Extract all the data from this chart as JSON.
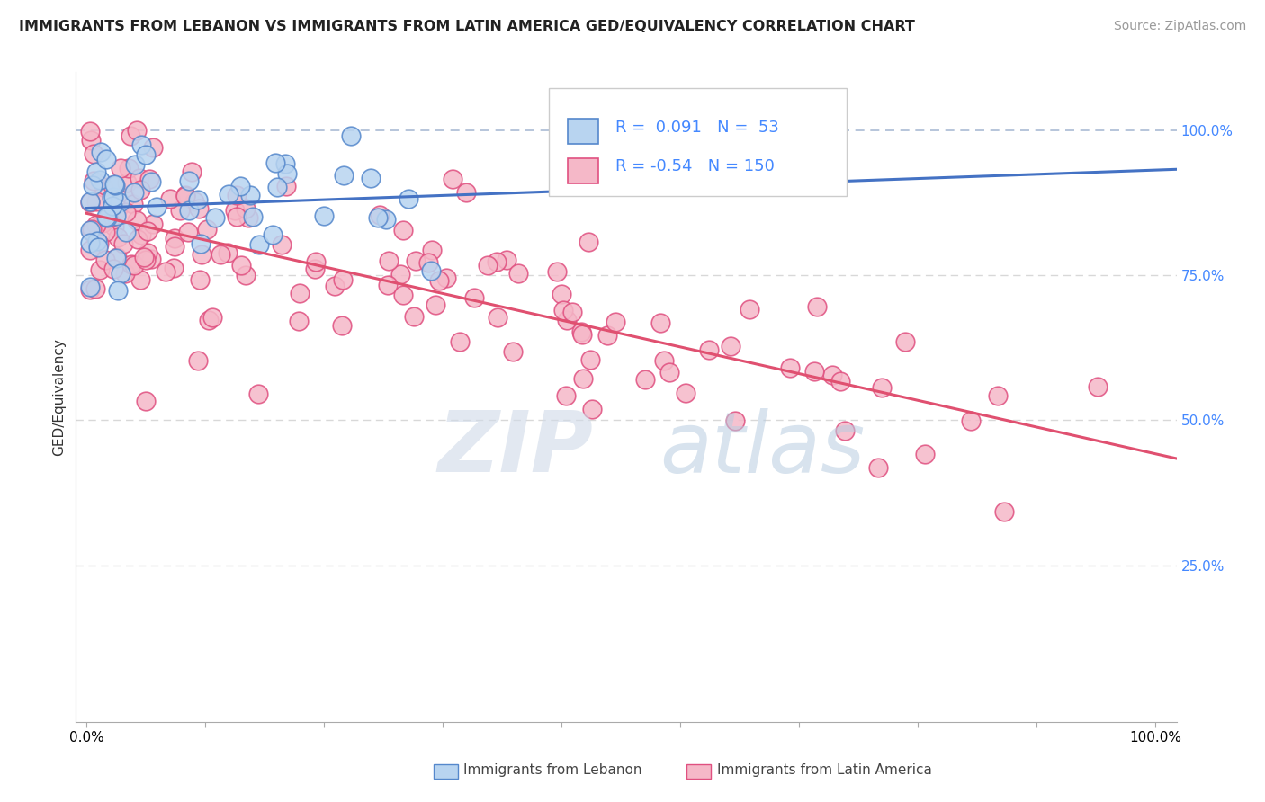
{
  "title": "IMMIGRANTS FROM LEBANON VS IMMIGRANTS FROM LATIN AMERICA GED/EQUIVALENCY CORRELATION CHART",
  "source": "Source: ZipAtlas.com",
  "ylabel": "GED/Equivalency",
  "r_lebanon": 0.091,
  "n_lebanon": 53,
  "r_latin": -0.54,
  "n_latin": 150,
  "legend_label_lebanon": "Immigrants from Lebanon",
  "legend_label_latin": "Immigrants from Latin America",
  "color_lebanon_fill": "#b8d4f0",
  "color_latin_fill": "#f5b8c8",
  "color_lebanon_edge": "#5588cc",
  "color_latin_edge": "#e05080",
  "color_lebanon_line": "#4472c4",
  "color_latin_line": "#e05070",
  "color_r_text": "#4488ff",
  "right_ytick_labels": [
    "100.0%",
    "75.0%",
    "50.0%",
    "25.0%"
  ],
  "right_ytick_values": [
    1.0,
    0.75,
    0.5,
    0.25
  ],
  "background_color": "#ffffff",
  "grid_color": "#d8d8d8",
  "watermark_zip": "ZIP",
  "watermark_atlas": "atlas",
  "ylim_min": -0.02,
  "ylim_max": 1.1,
  "xlim_min": -0.01,
  "xlim_max": 1.02
}
